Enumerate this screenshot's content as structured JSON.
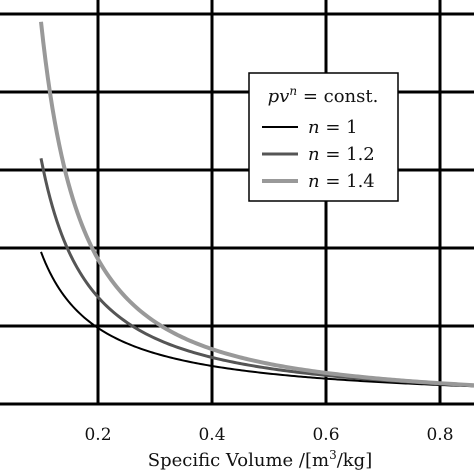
{
  "chart_data": {
    "type": "line",
    "title": "",
    "xlabel": "Specific Volume /[m³/kg]",
    "xlabel_parts": {
      "main": "Specific Volume /[m",
      "sup": "3",
      "tail": "/kg]"
    },
    "ylabel": "",
    "xlim": [
      0.0,
      0.9
    ],
    "ylim": [
      0.0,
      5.0
    ],
    "x_ticks": [
      "0.2",
      "0.4",
      "0.6",
      "0.8"
    ],
    "grid": true,
    "legend": {
      "placement": "top-right",
      "title": "pvⁿ = const.",
      "title_parts": {
        "pre": "pv",
        "sup": "n",
        "post": " = const."
      }
    },
    "series": [
      {
        "name": "n = 1",
        "label_pre": "n",
        "label_post": " = 1",
        "exponent": 1.0,
        "color": "#000000",
        "x_start": 0.1,
        "y_start": 1.95
      },
      {
        "name": "n = 1.2",
        "label_pre": "n",
        "label_post": " = 1.2",
        "exponent": 1.2,
        "color": "#555555",
        "x_start": 0.1,
        "y_start": 3.15
      },
      {
        "name": "n = 1.4",
        "label_pre": "n",
        "label_post": " = 1.4",
        "exponent": 1.4,
        "color": "#999999",
        "x_start": 0.1,
        "y_start": 4.9
      }
    ]
  }
}
